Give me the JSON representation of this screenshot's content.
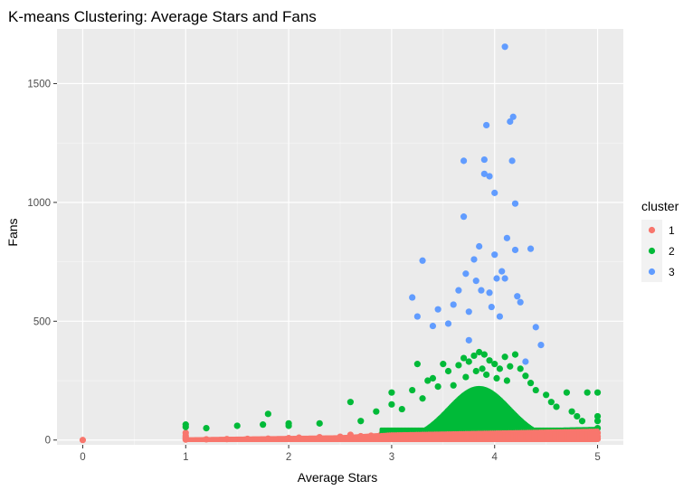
{
  "chart_data": {
    "type": "scatter",
    "title": "K-means Clustering: Average Stars and Fans",
    "xlabel": "Average Stars",
    "ylabel": "Fans",
    "xlim": [
      -0.25,
      5.25
    ],
    "ylim": [
      -20,
      1730
    ],
    "x_ticks": [
      0,
      1,
      2,
      3,
      4,
      5
    ],
    "x_tick_labels": [
      "0",
      "1",
      "2",
      "3",
      "4",
      "5"
    ],
    "y_ticks": [
      0,
      500,
      1000,
      1500
    ],
    "y_tick_labels": [
      "0",
      "500",
      "1000",
      "1500"
    ],
    "grid": true,
    "legend": {
      "title": "cluster",
      "placement": "right",
      "entries": [
        {
          "label": "1",
          "color": "#F8766D"
        },
        {
          "label": "2",
          "color": "#00BA38"
        },
        {
          "label": "3",
          "color": "#619CFF"
        }
      ]
    },
    "series": [
      {
        "name": "1",
        "color": "#F8766D",
        "points": [
          [
            0.0,
            0
          ],
          [
            1.0,
            2
          ],
          [
            1.0,
            10
          ],
          [
            1.0,
            18
          ],
          [
            1.0,
            30
          ],
          [
            1.2,
            3
          ],
          [
            1.4,
            4
          ],
          [
            1.6,
            5
          ],
          [
            1.8,
            6
          ],
          [
            2.0,
            8
          ],
          [
            2.1,
            10
          ],
          [
            2.3,
            12
          ],
          [
            2.5,
            14
          ],
          [
            2.6,
            22
          ],
          [
            2.7,
            16
          ],
          [
            2.8,
            18
          ],
          [
            2.9,
            24
          ],
          [
            3.0,
            20
          ],
          [
            3.1,
            28
          ],
          [
            3.2,
            26
          ],
          [
            3.3,
            34
          ],
          [
            3.4,
            30
          ],
          [
            3.5,
            36
          ],
          [
            3.6,
            32
          ],
          [
            3.7,
            38
          ],
          [
            3.8,
            36
          ],
          [
            3.9,
            40
          ],
          [
            4.0,
            38
          ],
          [
            4.1,
            40
          ],
          [
            4.2,
            38
          ],
          [
            4.3,
            36
          ],
          [
            4.4,
            34
          ],
          [
            4.5,
            32
          ],
          [
            4.6,
            30
          ],
          [
            4.7,
            28
          ],
          [
            4.8,
            26
          ],
          [
            4.9,
            24
          ],
          [
            5.0,
            5
          ],
          [
            5.0,
            15
          ],
          [
            5.0,
            30
          ]
        ]
      },
      {
        "name": "2",
        "color": "#00BA38",
        "points": [
          [
            1.0,
            55
          ],
          [
            1.0,
            65
          ],
          [
            1.2,
            50
          ],
          [
            1.5,
            60
          ],
          [
            1.75,
            65
          ],
          [
            1.8,
            110
          ],
          [
            2.0,
            70
          ],
          [
            2.0,
            60
          ],
          [
            2.3,
            70
          ],
          [
            2.6,
            160
          ],
          [
            2.7,
            80
          ],
          [
            2.85,
            120
          ],
          [
            3.0,
            150
          ],
          [
            3.0,
            200
          ],
          [
            3.1,
            130
          ],
          [
            3.2,
            210
          ],
          [
            3.25,
            320
          ],
          [
            3.3,
            175
          ],
          [
            3.35,
            250
          ],
          [
            3.4,
            260
          ],
          [
            3.45,
            225
          ],
          [
            3.5,
            320
          ],
          [
            3.55,
            290
          ],
          [
            3.6,
            230
          ],
          [
            3.65,
            315
          ],
          [
            3.7,
            345
          ],
          [
            3.72,
            265
          ],
          [
            3.75,
            330
          ],
          [
            3.8,
            355
          ],
          [
            3.82,
            290
          ],
          [
            3.85,
            370
          ],
          [
            3.88,
            300
          ],
          [
            3.9,
            360
          ],
          [
            3.92,
            275
          ],
          [
            3.95,
            335
          ],
          [
            4.0,
            320
          ],
          [
            4.02,
            260
          ],
          [
            4.05,
            300
          ],
          [
            4.1,
            350
          ],
          [
            4.12,
            250
          ],
          [
            4.15,
            310
          ],
          [
            4.2,
            360
          ],
          [
            4.25,
            300
          ],
          [
            4.3,
            270
          ],
          [
            4.35,
            240
          ],
          [
            4.4,
            210
          ],
          [
            4.5,
            190
          ],
          [
            4.55,
            160
          ],
          [
            4.6,
            140
          ],
          [
            4.7,
            200
          ],
          [
            4.75,
            120
          ],
          [
            4.8,
            100
          ],
          [
            4.85,
            80
          ],
          [
            4.9,
            200
          ],
          [
            5.0,
            200
          ],
          [
            5.0,
            100
          ],
          [
            5.0,
            80
          ],
          [
            5.0,
            50
          ]
        ]
      },
      {
        "name": "3",
        "color": "#619CFF",
        "points": [
          [
            3.2,
            600
          ],
          [
            3.25,
            520
          ],
          [
            3.3,
            755
          ],
          [
            3.4,
            480
          ],
          [
            3.45,
            550
          ],
          [
            3.55,
            490
          ],
          [
            3.6,
            570
          ],
          [
            3.65,
            630
          ],
          [
            3.7,
            1175
          ],
          [
            3.7,
            940
          ],
          [
            3.72,
            700
          ],
          [
            3.75,
            420
          ],
          [
            3.75,
            540
          ],
          [
            3.8,
            760
          ],
          [
            3.82,
            670
          ],
          [
            3.85,
            815
          ],
          [
            3.87,
            630
          ],
          [
            3.9,
            1120
          ],
          [
            3.9,
            1180
          ],
          [
            3.92,
            1325
          ],
          [
            3.95,
            1110
          ],
          [
            3.95,
            620
          ],
          [
            3.97,
            560
          ],
          [
            4.0,
            1040
          ],
          [
            4.0,
            780
          ],
          [
            4.02,
            680
          ],
          [
            4.05,
            520
          ],
          [
            4.07,
            710
          ],
          [
            4.1,
            1655
          ],
          [
            4.1,
            680
          ],
          [
            4.12,
            850
          ],
          [
            4.15,
            1340
          ],
          [
            4.17,
            1175
          ],
          [
            4.18,
            1360
          ],
          [
            4.2,
            995
          ],
          [
            4.2,
            800
          ],
          [
            4.22,
            605
          ],
          [
            4.25,
            580
          ],
          [
            4.3,
            330
          ],
          [
            4.35,
            805
          ],
          [
            4.4,
            475
          ],
          [
            4.45,
            400
          ]
        ]
      }
    ]
  }
}
